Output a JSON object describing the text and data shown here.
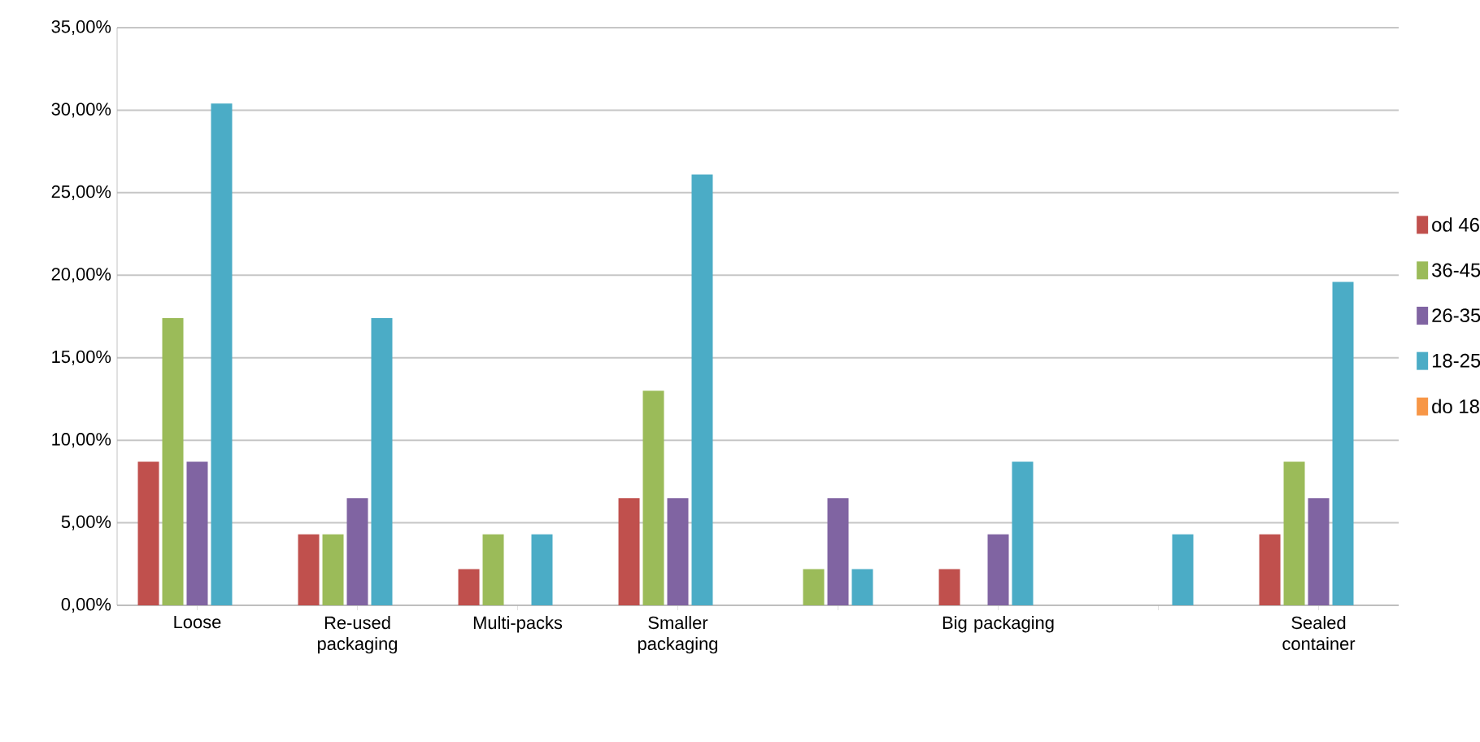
{
  "chart_data": {
    "type": "bar",
    "categories": [
      "Loose",
      "Re-used packaging",
      "Multi-packs",
      "Smaller packaging",
      null,
      "Big packaging",
      null,
      "Sealed container"
    ],
    "series": [
      {
        "name": "od 46",
        "color": "#c0504d",
        "values": [
          8.7,
          4.3,
          2.2,
          6.5,
          0,
          2.2,
          0,
          4.3
        ]
      },
      {
        "name": "36-45",
        "color": "#9bbb59",
        "values": [
          17.4,
          4.3,
          4.3,
          13.0,
          2.2,
          0,
          0,
          8.7
        ]
      },
      {
        "name": "26-35",
        "color": "#8064a2",
        "values": [
          8.7,
          6.5,
          0,
          6.5,
          6.5,
          4.3,
          0,
          6.5
        ]
      },
      {
        "name": "18-25",
        "color": "#4bacc6",
        "values": [
          30.4,
          17.4,
          4.3,
          26.1,
          2.2,
          8.7,
          4.3,
          19.6
        ]
      },
      {
        "name": "do 18",
        "color": "#f79646",
        "values": [
          0,
          0,
          0,
          0,
          0,
          0,
          0,
          0
        ]
      }
    ],
    "ylim": [
      0,
      35
    ],
    "yticks": [
      {
        "value": 0,
        "label": "0,00%"
      },
      {
        "value": 5,
        "label": "5,00%"
      },
      {
        "value": 10,
        "label": "10,00%"
      },
      {
        "value": 15,
        "label": "15,00%"
      },
      {
        "value": 20,
        "label": "20,00%"
      },
      {
        "value": 25,
        "label": "25,00%"
      },
      {
        "value": 30,
        "label": "30,00%"
      },
      {
        "value": 35,
        "label": "35,00%"
      }
    ],
    "grid": "y",
    "legend": "right"
  }
}
